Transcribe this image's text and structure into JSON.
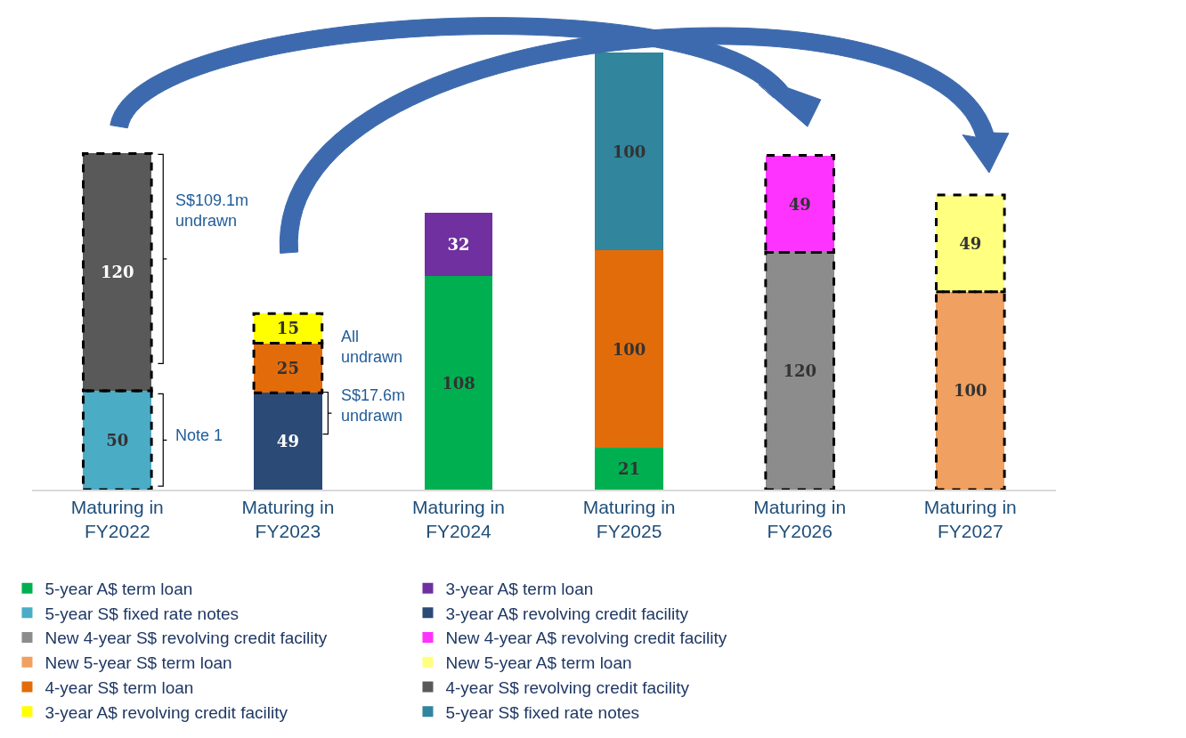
{
  "chart_data": {
    "type": "bar",
    "stacked": true,
    "data_labels": true,
    "legend": "bottom",
    "categories": [
      "Maturing in FY2022",
      "Maturing in FY2023",
      "Maturing in FY2024",
      "Maturing in FY2025",
      "Maturing in FY2026",
      "Maturing in FY2027"
    ],
    "series": [
      {
        "name": "5-year A$ term loan",
        "color": "#00b050",
        "values": [
          null,
          null,
          108,
          21,
          null,
          null
        ]
      },
      {
        "name": "3-year A$ term loan",
        "color": "#7030a0",
        "values": [
          null,
          null,
          32,
          null,
          null,
          null
        ]
      },
      {
        "name": "5-year S$ fixed rate notes",
        "color": "#4bacc6",
        "line_style": "dashed",
        "values": [
          50,
          null,
          null,
          null,
          null,
          null
        ]
      },
      {
        "name": "3-year A$ revolving credit facility",
        "color": "#2c4a76",
        "values": [
          null,
          49,
          null,
          null,
          null,
          null
        ]
      },
      {
        "name": "New 4-year S$ revolving credit facility",
        "color": "#8c8c8c",
        "line_style": "dashed",
        "values": [
          null,
          null,
          null,
          null,
          120,
          null
        ]
      },
      {
        "name": "New 4-year A$ revolving credit facility",
        "color": "#ff33ff",
        "line_style": "dashed",
        "values": [
          null,
          null,
          null,
          null,
          49,
          null
        ]
      },
      {
        "name": "New 5-year S$ term loan",
        "color": "#f0a060",
        "line_style": "dashed",
        "values": [
          null,
          null,
          null,
          null,
          null,
          100
        ]
      },
      {
        "name": "New 5-year A$ term loan",
        "color": "#ffff80",
        "line_style": "dashed",
        "values": [
          null,
          null,
          null,
          null,
          null,
          49
        ]
      },
      {
        "name": "4-year S$ term loan",
        "color": "#e36c0a",
        "values": [
          null,
          null,
          null,
          100,
          null,
          null
        ]
      },
      {
        "color": "#e36c0a",
        "line_style": "dashed",
        "values": [
          null,
          25,
          null,
          null,
          null,
          null
        ]
      },
      {
        "name": "4-year S$ revolving credit facility",
        "color": "#595959",
        "line_style": "dashed",
        "values": [
          120,
          null,
          null,
          null,
          null,
          null
        ]
      },
      {
        "name": "3-year A$ revolving credit facility",
        "color": "#ffff00",
        "line_style": "dashed",
        "values": [
          null,
          15,
          null,
          null,
          null,
          null
        ]
      },
      {
        "name": "5-year S$ fixed rate notes",
        "color": "#31859c",
        "values": [
          null,
          null,
          null,
          100,
          null,
          null
        ]
      }
    ],
    "annotations": [
      "S$109.1m\nundrawn",
      "Note 1",
      "All\nundrawn",
      "S$17.6m\nundrawn"
    ]
  }
}
